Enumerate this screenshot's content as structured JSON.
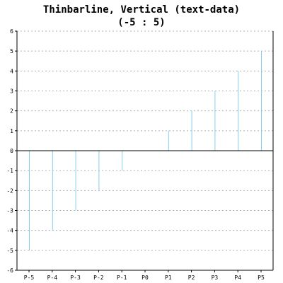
{
  "chart_data": {
    "type": "bar",
    "title": "Thinbarline, Vertical (text-data)",
    "subtitle": "(-5 : 5)",
    "categories": [
      "P-5",
      "P-4",
      "P-3",
      "P-2",
      "P-1",
      "P0",
      "P1",
      "P2",
      "P3",
      "P4",
      "P5"
    ],
    "values": [
      -5,
      -4,
      -3,
      -2,
      -1,
      0,
      1,
      2,
      3,
      4,
      5
    ],
    "xlabel": "",
    "ylabel": "",
    "ylim": [
      -6,
      6
    ],
    "yticks": [
      -6,
      -5,
      -4,
      -3,
      -2,
      -1,
      0,
      1,
      2,
      3,
      4,
      5,
      6
    ],
    "grid": true,
    "bar_color": "#87cee8",
    "axis_color": "#000000",
    "grid_color": "#b0b0b0"
  }
}
